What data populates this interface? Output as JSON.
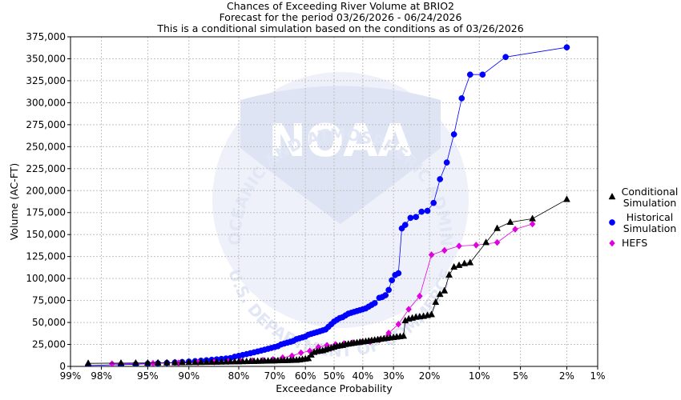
{
  "chart_data": {
    "type": "line",
    "title": "Chances of Exceeding River Volume at BRIO2",
    "subtitle_lines": [
      "Forecast for the period 03/26/2026 - 06/24/2026",
      "This is a conditional simulation based on the conditions as of 03/26/2026"
    ],
    "xlabel": "Exceedance Probability",
    "ylabel": "Volume (AC-FT)",
    "x_scale": "normal-probability",
    "xlim": [
      99,
      1
    ],
    "ylim": [
      0,
      375000
    ],
    "y_ticks": [
      0,
      25000,
      50000,
      75000,
      100000,
      125000,
      150000,
      175000,
      200000,
      225000,
      250000,
      275000,
      300000,
      325000,
      350000,
      375000
    ],
    "y_tick_labels": [
      "0",
      "25,000",
      "50,000",
      "75,000",
      "100,000",
      "125,000",
      "150,000",
      "175,000",
      "200,000",
      "225,000",
      "250,000",
      "275,000",
      "300,000",
      "325,000",
      "350,000",
      "375,000"
    ],
    "x_ticks": [
      99,
      98,
      95,
      90,
      80,
      70,
      60,
      50,
      40,
      30,
      20,
      10,
      5,
      2,
      1
    ],
    "x_tick_labels": [
      "99%",
      "98%",
      "95%",
      "90%",
      "80%",
      "70%",
      "60%",
      "50%",
      "40%",
      "30%",
      "20%",
      "10%",
      "5%",
      "2%",
      "1%"
    ],
    "grid": true,
    "legend_position": "right",
    "series": [
      {
        "name": "Conditional Simulation",
        "legend_lines": [
          "Conditional",
          "Simulation"
        ],
        "color": "#000000",
        "marker": "triangle",
        "points": [
          [
            98.5,
            3500
          ],
          [
            97,
            3700
          ],
          [
            96,
            3800
          ],
          [
            95,
            3900
          ],
          [
            94,
            4000
          ],
          [
            93,
            4100
          ],
          [
            92,
            4200
          ],
          [
            91,
            4300
          ],
          [
            90,
            4400
          ],
          [
            89,
            4500
          ],
          [
            88,
            4600
          ],
          [
            87,
            4700
          ],
          [
            86,
            4800
          ],
          [
            85,
            4900
          ],
          [
            84,
            5000
          ],
          [
            83,
            5100
          ],
          [
            82,
            5200
          ],
          [
            81,
            5300
          ],
          [
            80,
            5400
          ],
          [
            79,
            5500
          ],
          [
            78,
            5600
          ],
          [
            77,
            5700
          ],
          [
            76,
            5800
          ],
          [
            75,
            5900
          ],
          [
            74,
            6000
          ],
          [
            73,
            6100
          ],
          [
            72,
            6200
          ],
          [
            71,
            6300
          ],
          [
            70,
            6400
          ],
          [
            69,
            6500
          ],
          [
            68,
            6600
          ],
          [
            67,
            6700
          ],
          [
            66,
            6800
          ],
          [
            65,
            6900
          ],
          [
            64,
            7000
          ],
          [
            63,
            7100
          ],
          [
            62,
            7500
          ],
          [
            61,
            8000
          ],
          [
            60,
            8500
          ],
          [
            59,
            9000
          ],
          [
            58,
            13000
          ],
          [
            57,
            16000
          ],
          [
            56,
            17000
          ],
          [
            55,
            17500
          ],
          [
            54,
            18000
          ],
          [
            53,
            19000
          ],
          [
            52,
            20000
          ],
          [
            51,
            21000
          ],
          [
            50,
            22000
          ],
          [
            49,
            23000
          ],
          [
            48,
            23500
          ],
          [
            47,
            24000
          ],
          [
            46,
            25000
          ],
          [
            45,
            25500
          ],
          [
            44,
            26000
          ],
          [
            43,
            26500
          ],
          [
            42,
            27000
          ],
          [
            41,
            27500
          ],
          [
            40,
            28000
          ],
          [
            39,
            28500
          ],
          [
            38,
            29000
          ],
          [
            37,
            29500
          ],
          [
            36,
            30000
          ],
          [
            35,
            30500
          ],
          [
            34,
            31000
          ],
          [
            33,
            31500
          ],
          [
            32,
            32000
          ],
          [
            31,
            32500
          ],
          [
            30,
            33000
          ],
          [
            29,
            33500
          ],
          [
            28,
            34000
          ],
          [
            27,
            34500
          ],
          [
            26.5,
            52000
          ],
          [
            25.5,
            54000
          ],
          [
            24.5,
            55000
          ],
          [
            23.5,
            56000
          ],
          [
            22.5,
            56500
          ],
          [
            21.5,
            57000
          ],
          [
            20.5,
            58000
          ],
          [
            19.5,
            59000
          ],
          [
            18.5,
            73000
          ],
          [
            17.5,
            82000
          ],
          [
            16.5,
            86000
          ],
          [
            15.5,
            104000
          ],
          [
            14.5,
            113000
          ],
          [
            13.5,
            115000
          ],
          [
            12.5,
            117000
          ],
          [
            11.5,
            118000
          ],
          [
            9,
            141000
          ],
          [
            7.5,
            157000
          ],
          [
            6,
            164000
          ],
          [
            4,
            168000
          ],
          [
            2,
            190000
          ]
        ]
      },
      {
        "name": "Historical Simulation",
        "legend_lines": [
          "Historical",
          "Simulation"
        ],
        "color": "#0000ff",
        "marker": "circle",
        "points": [
          [
            98.5,
            1000
          ],
          [
            97,
            2000
          ],
          [
            96,
            2500
          ],
          [
            95,
            3000
          ],
          [
            94,
            3500
          ],
          [
            93,
            4000
          ],
          [
            92,
            4500
          ],
          [
            91,
            5000
          ],
          [
            90,
            5500
          ],
          [
            89,
            6000
          ],
          [
            88,
            6500
          ],
          [
            87,
            7000
          ],
          [
            86,
            7500
          ],
          [
            85,
            8000
          ],
          [
            84,
            8500
          ],
          [
            83,
            9000
          ],
          [
            82,
            9500
          ],
          [
            81,
            11000
          ],
          [
            80,
            12000
          ],
          [
            79,
            13000
          ],
          [
            78,
            14000
          ],
          [
            77,
            15000
          ],
          [
            76,
            16000
          ],
          [
            75,
            17000
          ],
          [
            74,
            18000
          ],
          [
            73,
            19000
          ],
          [
            72,
            20000
          ],
          [
            71,
            21000
          ],
          [
            70,
            22000
          ],
          [
            69,
            23000
          ],
          [
            68,
            25000
          ],
          [
            67,
            26000
          ],
          [
            66,
            27000
          ],
          [
            65,
            28000
          ],
          [
            64,
            29000
          ],
          [
            63,
            31000
          ],
          [
            62,
            32000
          ],
          [
            61,
            33000
          ],
          [
            60,
            34000
          ],
          [
            59,
            36000
          ],
          [
            58,
            37000
          ],
          [
            57,
            38000
          ],
          [
            56,
            39000
          ],
          [
            55,
            40000
          ],
          [
            54,
            41000
          ],
          [
            53,
            42000
          ],
          [
            52,
            45000
          ],
          [
            51,
            48000
          ],
          [
            50,
            51000
          ],
          [
            49,
            53000
          ],
          [
            48,
            55000
          ],
          [
            47,
            56000
          ],
          [
            46,
            58000
          ],
          [
            45,
            60000
          ],
          [
            44,
            61000
          ],
          [
            43,
            62000
          ],
          [
            42,
            63000
          ],
          [
            41,
            64000
          ],
          [
            40,
            65000
          ],
          [
            39,
            66000
          ],
          [
            38,
            68000
          ],
          [
            37,
            70000
          ],
          [
            36,
            72000
          ],
          [
            34.5,
            78000
          ],
          [
            33.5,
            79000
          ],
          [
            32.5,
            81000
          ],
          [
            31.5,
            87000
          ],
          [
            30.5,
            98000
          ],
          [
            29.5,
            104000
          ],
          [
            28.5,
            106000
          ],
          [
            27.5,
            157000
          ],
          [
            26.5,
            161000
          ],
          [
            25,
            169000
          ],
          [
            23.5,
            170000
          ],
          [
            22,
            176000
          ],
          [
            20.5,
            177000
          ],
          [
            19,
            186000
          ],
          [
            17.5,
            213000
          ],
          [
            16,
            232000
          ],
          [
            14.5,
            264000
          ],
          [
            13,
            305000
          ],
          [
            11.5,
            332000
          ],
          [
            9.5,
            332000
          ],
          [
            6.5,
            352000
          ],
          [
            2,
            363000
          ]
        ]
      },
      {
        "name": "HEFS",
        "legend_lines": [
          "HEFS"
        ],
        "color": "#e000e0",
        "marker": "diamond",
        "points": [
          [
            97.5,
            3000
          ],
          [
            94.5,
            3500
          ],
          [
            91.5,
            4000
          ],
          [
            88.5,
            4500
          ],
          [
            85.5,
            5000
          ],
          [
            82.5,
            5500
          ],
          [
            79.5,
            6000
          ],
          [
            76.5,
            6500
          ],
          [
            73.5,
            7000
          ],
          [
            70.5,
            8000
          ],
          [
            67.5,
            10000
          ],
          [
            64.5,
            12000
          ],
          [
            61.5,
            15500
          ],
          [
            58.5,
            17500
          ],
          [
            55.5,
            22000
          ],
          [
            52.5,
            24000
          ],
          [
            49.5,
            25000
          ],
          [
            46.5,
            26000
          ],
          [
            43.5,
            27000
          ],
          [
            40.5,
            27500
          ],
          [
            37.5,
            28000
          ],
          [
            34.5,
            30000
          ],
          [
            31.5,
            38000
          ],
          [
            28.5,
            48000
          ],
          [
            25.5,
            65000
          ],
          [
            22.5,
            80000
          ],
          [
            19.5,
            127000
          ],
          [
            16.5,
            132000
          ],
          [
            13.5,
            137000
          ],
          [
            10.5,
            138000
          ],
          [
            7.5,
            141000
          ],
          [
            5.5,
            156000
          ],
          [
            4,
            162000
          ]
        ]
      }
    ]
  },
  "colors": {
    "plot_border": "#000000",
    "grid": "#c0c0c0",
    "watermark": "#e6eaf7"
  },
  "watermark": {
    "logo_text": "NOAA",
    "ring_text": "NATIONAL OCEANIC AND ATMOSPHERIC ADMINISTRATION",
    "ring_text_bottom": "U.S. DEPARTMENT OF COMMERCE"
  }
}
